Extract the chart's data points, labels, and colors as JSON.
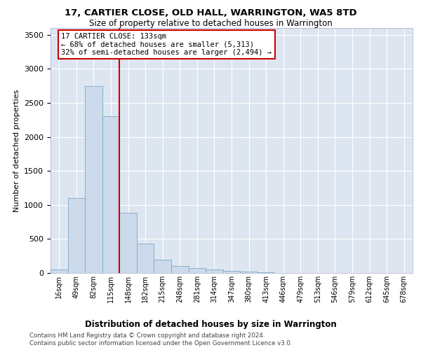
{
  "title": "17, CARTIER CLOSE, OLD HALL, WARRINGTON, WA5 8TD",
  "subtitle": "Size of property relative to detached houses in Warrington",
  "xlabel": "Distribution of detached houses by size in Warrington",
  "ylabel": "Number of detached properties",
  "categories": [
    "16sqm",
    "49sqm",
    "82sqm",
    "115sqm",
    "148sqm",
    "182sqm",
    "215sqm",
    "248sqm",
    "281sqm",
    "314sqm",
    "347sqm",
    "380sqm",
    "413sqm",
    "446sqm",
    "479sqm",
    "513sqm",
    "546sqm",
    "579sqm",
    "612sqm",
    "645sqm",
    "678sqm"
  ],
  "values": [
    50,
    1100,
    2750,
    2300,
    880,
    430,
    200,
    100,
    70,
    55,
    35,
    20,
    10,
    5,
    5,
    2,
    2,
    1,
    1,
    1,
    1
  ],
  "bar_color": "#ccdaeb",
  "bar_edge_color": "#7aaaca",
  "vline_color": "#cc0000",
  "vline_pos": 3.5,
  "annotation_text": "17 CARTIER CLOSE: 133sqm\n← 68% of detached houses are smaller (5,313)\n32% of semi-detached houses are larger (2,494) →",
  "annotation_box_edgecolor": "#cc0000",
  "ylim": [
    0,
    3600
  ],
  "yticks": [
    0,
    500,
    1000,
    1500,
    2000,
    2500,
    3000,
    3500
  ],
  "background_color": "#dde6f0",
  "grid_color": "#ffffff",
  "footer_line1": "Contains HM Land Registry data © Crown copyright and database right 2024.",
  "footer_line2": "Contains public sector information licensed under the Open Government Licence v3.0."
}
